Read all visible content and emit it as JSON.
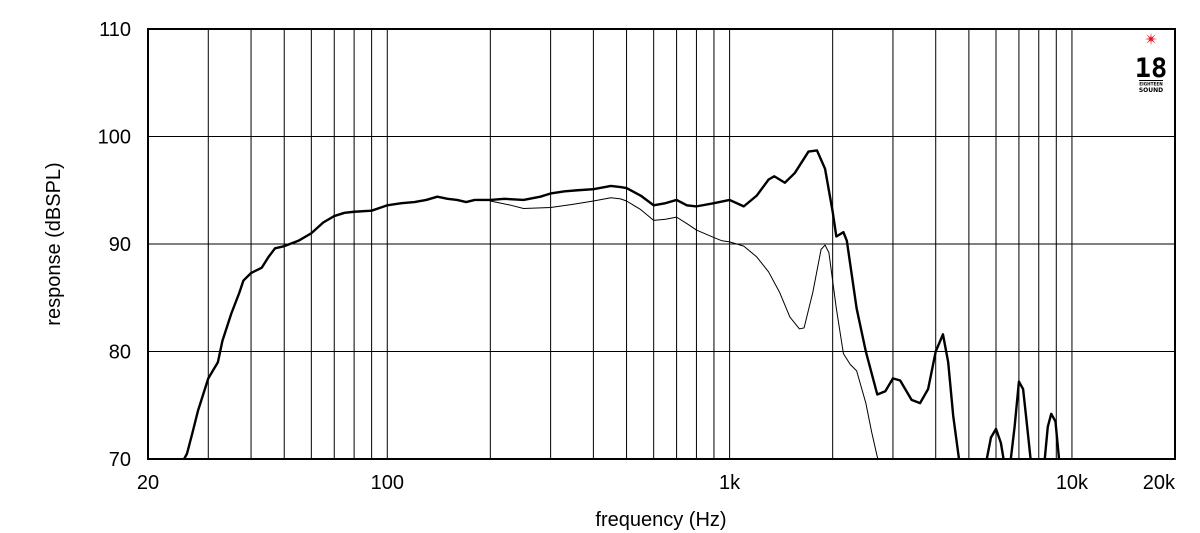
{
  "chart_data": {
    "type": "line",
    "xlabel": "frequency (Hz)",
    "ylabel": "response (dBSPL)",
    "x_scale": "log",
    "xlim": [
      20,
      20000
    ],
    "ylim": [
      70,
      110
    ],
    "grid": true,
    "x_tick_labels": [
      {
        "value": 20,
        "label": "20"
      },
      {
        "value": 100,
        "label": "100"
      },
      {
        "value": 1000,
        "label": "1k"
      },
      {
        "value": 10000,
        "label": "10k"
      },
      {
        "value": 20000,
        "label": "20k"
      }
    ],
    "y_ticks": [
      70,
      80,
      90,
      100,
      110
    ],
    "series": [
      {
        "style": "thick",
        "color": "#000000",
        "points": [
          [
            25,
            69.5
          ],
          [
            26,
            70.5
          ],
          [
            27,
            72.5
          ],
          [
            28,
            74.5
          ],
          [
            30,
            77.5
          ],
          [
            32,
            79
          ],
          [
            33,
            81
          ],
          [
            35,
            83.5
          ],
          [
            37,
            85.5
          ],
          [
            38,
            86.6
          ],
          [
            40,
            87.3
          ],
          [
            43,
            87.8
          ],
          [
            45,
            88.8
          ],
          [
            47,
            89.6
          ],
          [
            50,
            89.8
          ],
          [
            55,
            90.3
          ],
          [
            60,
            91
          ],
          [
            65,
            92
          ],
          [
            70,
            92.6
          ],
          [
            75,
            92.9
          ],
          [
            80,
            93
          ],
          [
            90,
            93.1
          ],
          [
            100,
            93.6
          ],
          [
            110,
            93.8
          ],
          [
            120,
            93.9
          ],
          [
            130,
            94.1
          ],
          [
            140,
            94.4
          ],
          [
            150,
            94.2
          ],
          [
            160,
            94.1
          ],
          [
            170,
            93.9
          ],
          [
            180,
            94.1
          ],
          [
            200,
            94.1
          ],
          [
            220,
            94.2
          ],
          [
            250,
            94.1
          ],
          [
            280,
            94.4
          ],
          [
            300,
            94.7
          ],
          [
            330,
            94.9
          ],
          [
            360,
            95
          ],
          [
            400,
            95.1
          ],
          [
            450,
            95.4
          ],
          [
            480,
            95.3
          ],
          [
            500,
            95.2
          ],
          [
            550,
            94.5
          ],
          [
            600,
            93.6
          ],
          [
            650,
            93.8
          ],
          [
            700,
            94.1
          ],
          [
            750,
            93.6
          ],
          [
            800,
            93.5
          ],
          [
            900,
            93.8
          ],
          [
            1000,
            94.1
          ],
          [
            1100,
            93.5
          ],
          [
            1200,
            94.5
          ],
          [
            1300,
            96
          ],
          [
            1350,
            96.3
          ],
          [
            1450,
            95.7
          ],
          [
            1550,
            96.6
          ],
          [
            1700,
            98.6
          ],
          [
            1800,
            98.7
          ],
          [
            1900,
            97
          ],
          [
            2000,
            93
          ],
          [
            2050,
            90.7
          ],
          [
            2150,
            91.1
          ],
          [
            2200,
            90.3
          ],
          [
            2350,
            84
          ],
          [
            2500,
            80
          ],
          [
            2700,
            76
          ],
          [
            2850,
            76.3
          ],
          [
            3000,
            77.5
          ],
          [
            3150,
            77.3
          ],
          [
            3400,
            75.5
          ],
          [
            3600,
            75.2
          ],
          [
            3800,
            76.5
          ],
          [
            4000,
            80
          ],
          [
            4200,
            81.6
          ],
          [
            4350,
            79
          ],
          [
            4500,
            74
          ],
          [
            4700,
            69.5
          ]
        ]
      },
      {
        "style": "thick",
        "color": "#000000",
        "points": [
          [
            5600,
            69.5
          ],
          [
            5800,
            72
          ],
          [
            6000,
            72.8
          ],
          [
            6200,
            71.5
          ],
          [
            6350,
            69.5
          ]
        ]
      },
      {
        "style": "thick",
        "color": "#000000",
        "points": [
          [
            6600,
            69.5
          ],
          [
            6800,
            73
          ],
          [
            7000,
            77.2
          ],
          [
            7200,
            76.5
          ],
          [
            7400,
            73
          ],
          [
            7600,
            69.5
          ]
        ]
      },
      {
        "style": "thick",
        "color": "#000000",
        "points": [
          [
            8300,
            69.5
          ],
          [
            8500,
            73
          ],
          [
            8700,
            74.2
          ],
          [
            8950,
            73.5
          ],
          [
            9200,
            69.5
          ]
        ]
      },
      {
        "style": "thin",
        "color": "#000000",
        "points": [
          [
            200,
            94
          ],
          [
            230,
            93.6
          ],
          [
            250,
            93.3
          ],
          [
            300,
            93.4
          ],
          [
            350,
            93.7
          ],
          [
            400,
            94
          ],
          [
            450,
            94.3
          ],
          [
            480,
            94.2
          ],
          [
            500,
            94
          ],
          [
            550,
            93.2
          ],
          [
            600,
            92.2
          ],
          [
            650,
            92.3
          ],
          [
            700,
            92.5
          ],
          [
            750,
            91.9
          ],
          [
            800,
            91.3
          ],
          [
            900,
            90.6
          ],
          [
            950,
            90.3
          ],
          [
            1000,
            90.2
          ],
          [
            1100,
            89.8
          ],
          [
            1200,
            88.8
          ],
          [
            1300,
            87.4
          ],
          [
            1400,
            85.5
          ],
          [
            1500,
            83.2
          ],
          [
            1600,
            82.1
          ],
          [
            1650,
            82.2
          ],
          [
            1750,
            85.5
          ],
          [
            1850,
            89.5
          ],
          [
            1900,
            89.9
          ],
          [
            1950,
            89.2
          ],
          [
            2050,
            84
          ],
          [
            2150,
            79.8
          ],
          [
            2250,
            78.8
          ],
          [
            2350,
            78.2
          ],
          [
            2500,
            75.2
          ],
          [
            2600,
            72.5
          ],
          [
            2700,
            70.2
          ],
          [
            2750,
            69.5
          ]
        ]
      }
    ]
  },
  "logo": {
    "number": "18",
    "line1": "EIGHTEEN",
    "line2": "SOUND",
    "accent_color": "#e0141e"
  }
}
